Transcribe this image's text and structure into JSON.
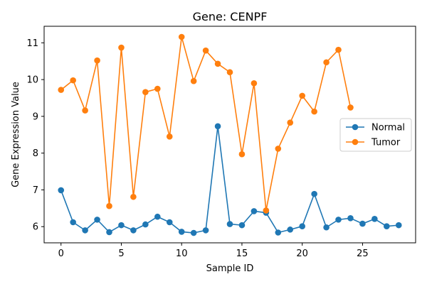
{
  "chart_data": {
    "type": "line",
    "title": "Gene: CENPF",
    "xlabel": "Sample ID",
    "ylabel": "Gene Expression Value",
    "xlim": [
      -1.4,
      29.4
    ],
    "ylim": [
      5.56,
      11.45
    ],
    "xticks": [
      0,
      5,
      10,
      15,
      20,
      25
    ],
    "yticks": [
      6,
      7,
      8,
      9,
      10,
      11
    ],
    "legend_position": "center-right",
    "marker": "circle",
    "series": [
      {
        "name": "Normal",
        "color": "#1f77b4",
        "x": [
          0,
          1,
          2,
          3,
          4,
          5,
          6,
          7,
          8,
          9,
          10,
          11,
          12,
          13,
          14,
          15,
          16,
          17,
          18,
          19,
          20,
          21,
          22,
          23,
          24,
          25,
          26,
          27,
          28
        ],
        "values": [
          6.99,
          6.12,
          5.9,
          6.19,
          5.85,
          6.04,
          5.9,
          6.06,
          6.27,
          6.12,
          5.86,
          5.83,
          5.9,
          8.73,
          6.07,
          6.04,
          6.42,
          6.38,
          5.84,
          5.92,
          6.01,
          6.89,
          5.98,
          6.19,
          6.23,
          6.08,
          6.21,
          6.01,
          6.04
        ]
      },
      {
        "name": "Tumor",
        "color": "#ff7f0e",
        "x": [
          0,
          1,
          2,
          3,
          4,
          5,
          6,
          7,
          8,
          9,
          10,
          11,
          12,
          13,
          14,
          15,
          16,
          17,
          18,
          19,
          20,
          21,
          22,
          23,
          24
        ],
        "values": [
          9.72,
          9.98,
          9.16,
          10.52,
          6.56,
          10.87,
          6.81,
          9.66,
          9.75,
          8.45,
          11.16,
          9.96,
          10.79,
          10.43,
          10.2,
          7.97,
          9.9,
          6.44,
          8.12,
          8.83,
          9.56,
          9.13,
          10.47,
          10.81,
          9.24
        ]
      }
    ]
  }
}
